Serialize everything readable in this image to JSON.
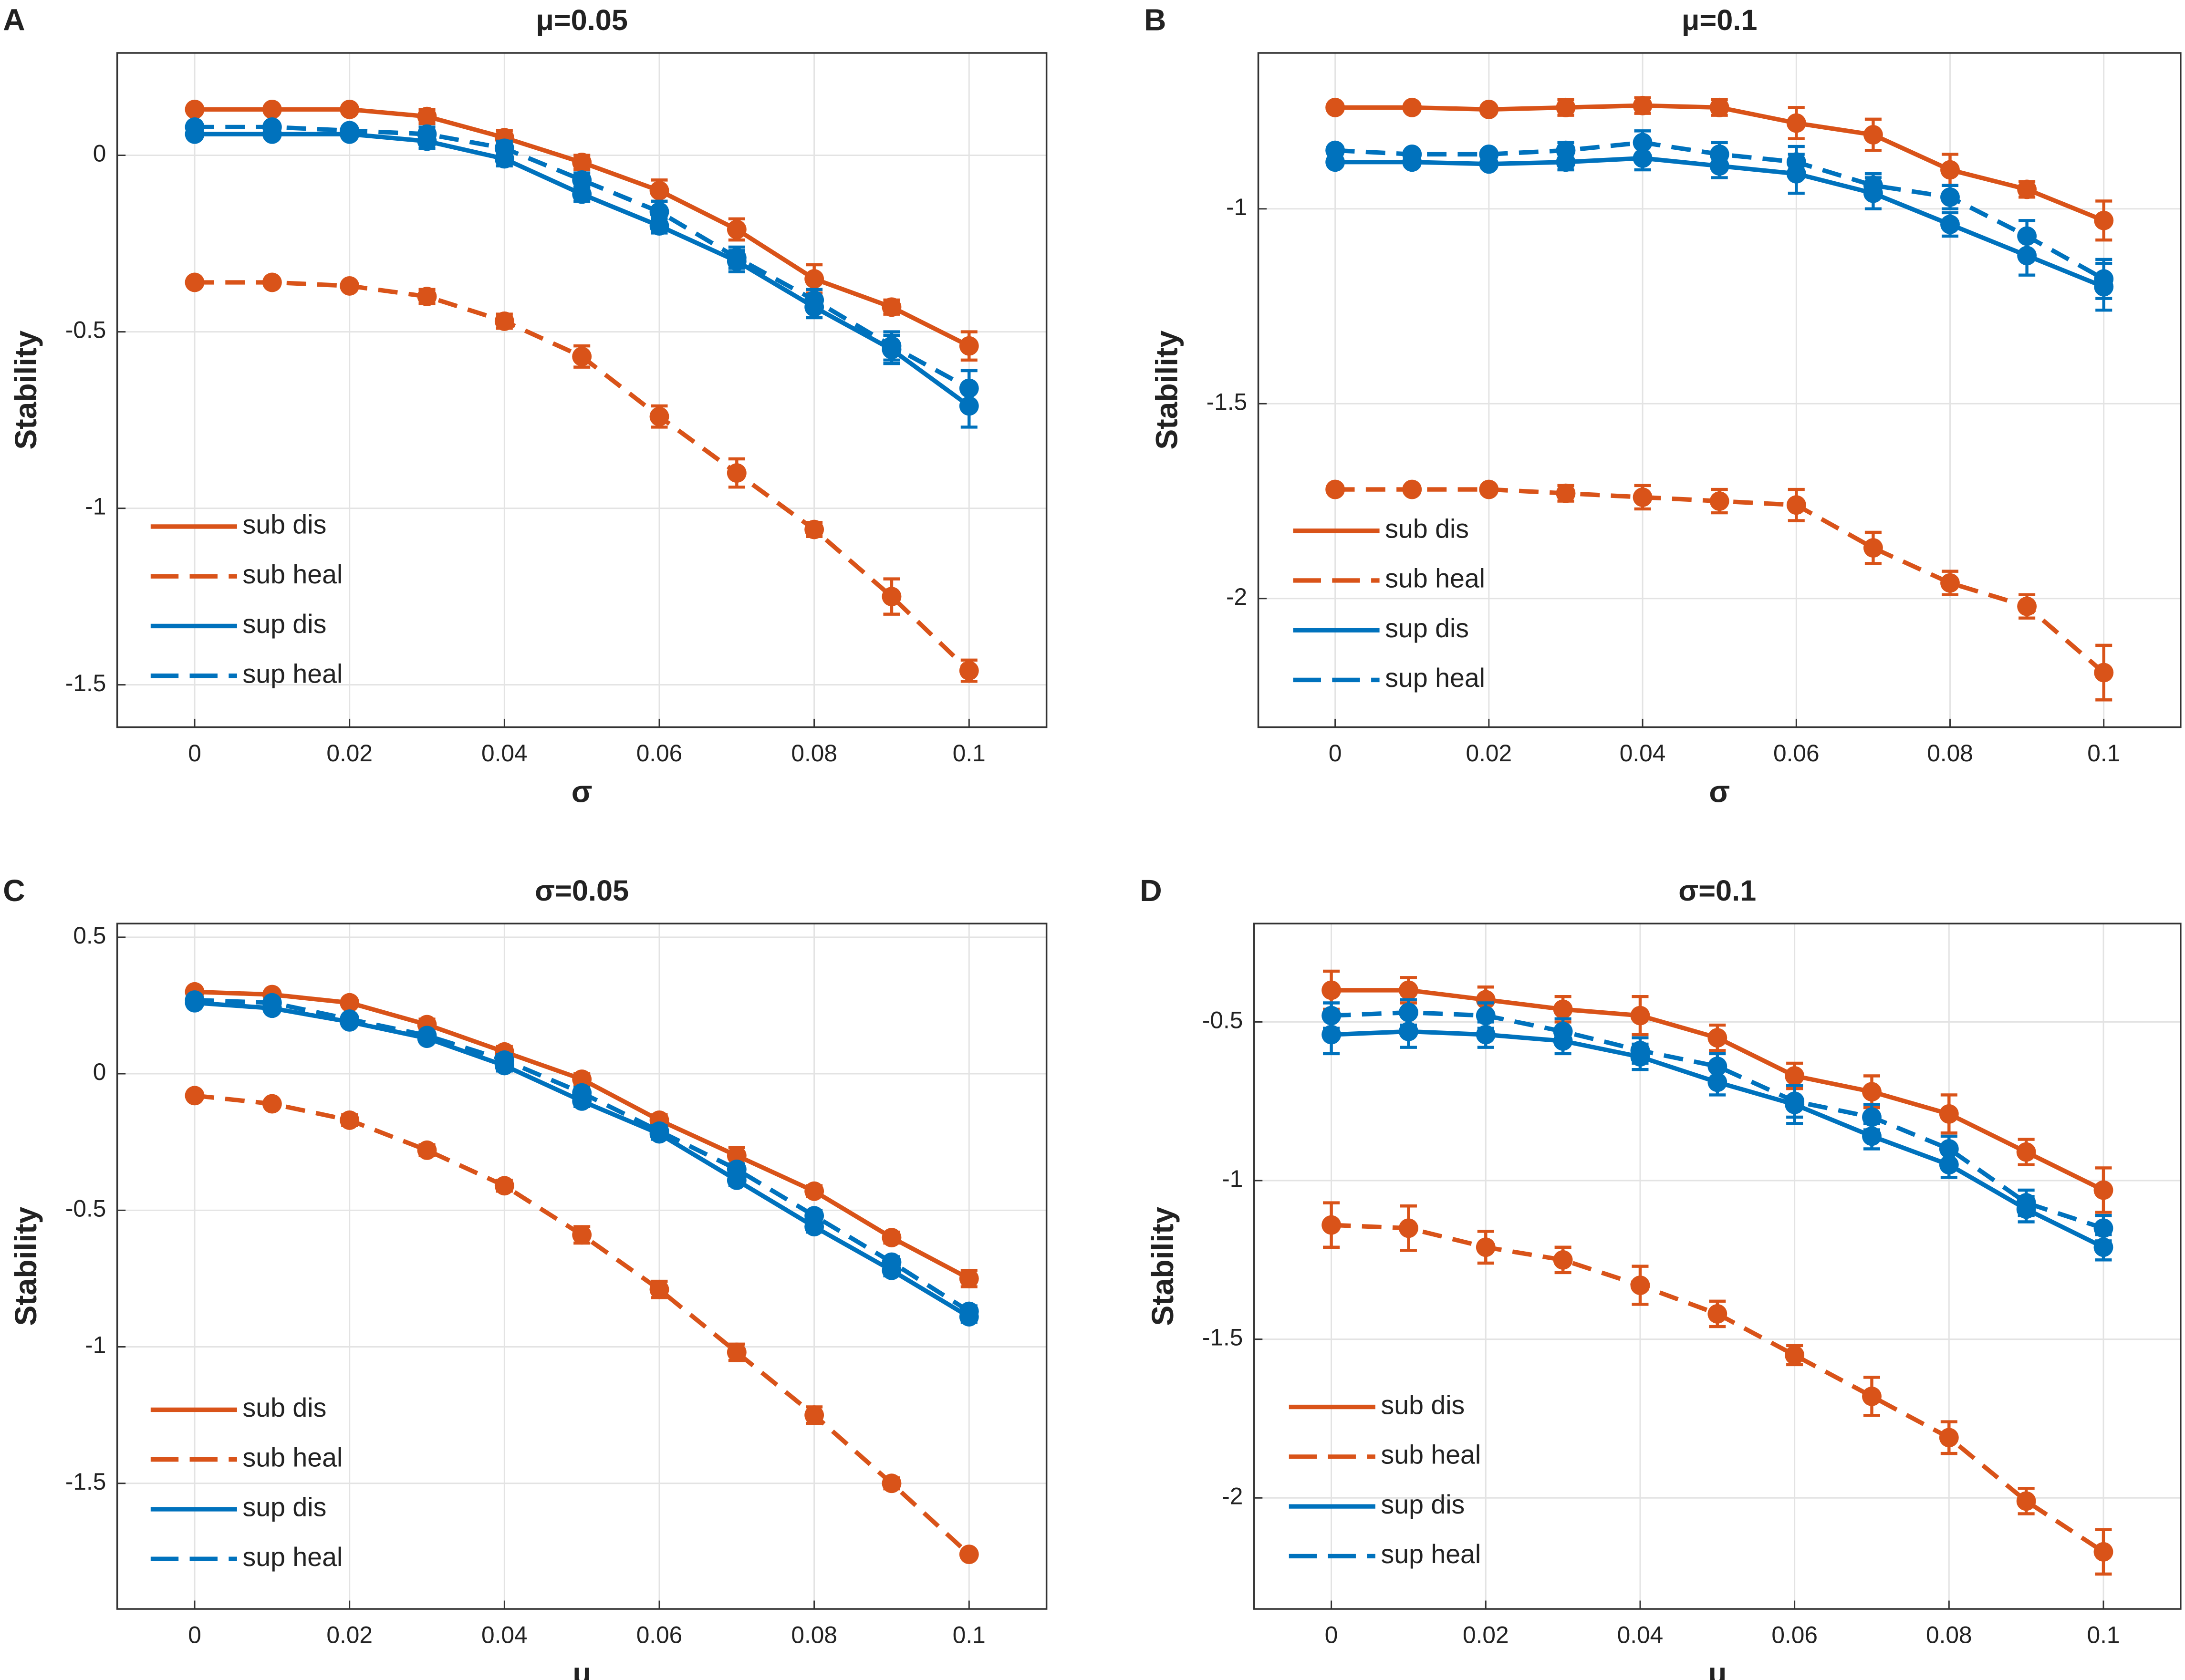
{
  "chart_data": [
    {
      "type": "line",
      "label": "A",
      "title": "μ=0.05",
      "xlabel": "σ",
      "ylabel": "Stability",
      "x": [
        0,
        0.01,
        0.02,
        0.03,
        0.04,
        0.05,
        0.06,
        0.07,
        0.08,
        0.09,
        0.1
      ],
      "xlim": [
        -0.01,
        0.11
      ],
      "ylim": [
        -1.62,
        0.29
      ],
      "xticks": [
        0,
        0.02,
        0.04,
        0.06,
        0.08,
        0.1
      ],
      "yticks": [
        0,
        -0.5,
        -1,
        -1.5
      ],
      "grid": true,
      "legend": "lower left",
      "series": [
        {
          "name": "sub dis",
          "color": "#d95319",
          "linestyle": "solid",
          "values": [
            0.13,
            0.13,
            0.13,
            0.11,
            0.05,
            -0.02,
            -0.1,
            -0.21,
            -0.35,
            -0.43,
            -0.54
          ],
          "errors": [
            0.01,
            0.01,
            0.01,
            0.02,
            0.02,
            0.02,
            0.03,
            0.03,
            0.04,
            0.02,
            0.04
          ]
        },
        {
          "name": "sub heal",
          "color": "#d95319",
          "linestyle": "dashed",
          "values": [
            -0.36,
            -0.36,
            -0.37,
            -0.4,
            -0.47,
            -0.57,
            -0.74,
            -0.9,
            -1.06,
            -1.25,
            -1.46
          ],
          "errors": [
            0.01,
            0.01,
            0.01,
            0.02,
            0.02,
            0.03,
            0.03,
            0.04,
            0.02,
            0.05,
            0.03
          ]
        },
        {
          "name": "sup dis",
          "color": "#0072bd",
          "linestyle": "solid",
          "values": [
            0.06,
            0.06,
            0.06,
            0.04,
            -0.01,
            -0.11,
            -0.2,
            -0.3,
            -0.43,
            -0.55,
            -0.71
          ],
          "errors": [
            0.01,
            0.01,
            0.01,
            0.02,
            0.02,
            0.02,
            0.02,
            0.03,
            0.03,
            0.04,
            0.06
          ]
        },
        {
          "name": "sup heal",
          "color": "#0072bd",
          "linestyle": "dashed",
          "values": [
            0.08,
            0.08,
            0.07,
            0.06,
            0.02,
            -0.07,
            -0.16,
            -0.29,
            -0.41,
            -0.54,
            -0.66
          ],
          "errors": [
            0.01,
            0.01,
            0.01,
            0.02,
            0.02,
            0.02,
            0.03,
            0.03,
            0.03,
            0.04,
            0.05
          ]
        }
      ]
    },
    {
      "type": "line",
      "label": "B",
      "title": "μ=0.1",
      "xlabel": "σ",
      "ylabel": "Stability",
      "x": [
        0,
        0.01,
        0.02,
        0.03,
        0.04,
        0.05,
        0.06,
        0.07,
        0.08,
        0.09,
        0.1
      ],
      "xlim": [
        -0.01,
        0.11
      ],
      "ylim": [
        -2.33,
        -0.6
      ],
      "xticks": [
        0,
        0.02,
        0.04,
        0.06,
        0.08,
        0.1
      ],
      "yticks": [
        -1,
        -1.5,
        -2
      ],
      "grid": true,
      "legend": "lower left",
      "series": [
        {
          "name": "sub dis",
          "color": "#d95319",
          "linestyle": "solid",
          "values": [
            -0.74,
            -0.74,
            -0.745,
            -0.74,
            -0.735,
            -0.74,
            -0.78,
            -0.81,
            -0.9,
            -0.95,
            -1.03
          ],
          "errors": [
            0.01,
            0.01,
            0.01,
            0.02,
            0.02,
            0.02,
            0.04,
            0.04,
            0.04,
            0.02,
            0.05
          ]
        },
        {
          "name": "sub heal",
          "color": "#d95319",
          "linestyle": "dashed",
          "values": [
            -1.72,
            -1.72,
            -1.72,
            -1.73,
            -1.74,
            -1.75,
            -1.76,
            -1.87,
            -1.96,
            -2.02,
            -2.19
          ],
          "errors": [
            0.01,
            0.01,
            0.01,
            0.02,
            0.03,
            0.03,
            0.04,
            0.04,
            0.03,
            0.03,
            0.07
          ]
        },
        {
          "name": "sup dis",
          "color": "#0072bd",
          "linestyle": "solid",
          "values": [
            -0.88,
            -0.88,
            -0.885,
            -0.88,
            -0.87,
            -0.89,
            -0.91,
            -0.96,
            -1.04,
            -1.12,
            -1.2
          ],
          "errors": [
            0.01,
            0.01,
            0.01,
            0.02,
            0.03,
            0.03,
            0.05,
            0.04,
            0.03,
            0.05,
            0.06
          ]
        },
        {
          "name": "sup heal",
          "color": "#0072bd",
          "linestyle": "dashed",
          "values": [
            -0.85,
            -0.86,
            -0.86,
            -0.85,
            -0.83,
            -0.86,
            -0.88,
            -0.94,
            -0.97,
            -1.07,
            -1.18
          ],
          "errors": [
            0.01,
            0.01,
            0.01,
            0.02,
            0.03,
            0.03,
            0.04,
            0.03,
            0.03,
            0.04,
            0.05
          ]
        }
      ]
    },
    {
      "type": "line",
      "label": "C",
      "title": "σ=0.05",
      "xlabel": "μ",
      "ylabel": "Stability",
      "x": [
        0,
        0.01,
        0.02,
        0.03,
        0.04,
        0.05,
        0.06,
        0.07,
        0.08,
        0.09,
        0.1
      ],
      "xlim": [
        -0.01,
        0.11
      ],
      "ylim": [
        -1.96,
        0.55
      ],
      "xticks": [
        0,
        0.02,
        0.04,
        0.06,
        0.08,
        0.1
      ],
      "yticks": [
        0.5,
        0,
        -0.5,
        -1,
        -1.5
      ],
      "grid": true,
      "legend": "lower left",
      "series": [
        {
          "name": "sub dis",
          "color": "#d95319",
          "linestyle": "solid",
          "values": [
            0.3,
            0.29,
            0.26,
            0.18,
            0.08,
            -0.02,
            -0.17,
            -0.3,
            -0.43,
            -0.6,
            -0.75
          ],
          "errors": [
            0.01,
            0.01,
            0.01,
            0.02,
            0.02,
            0.02,
            0.02,
            0.03,
            0.02,
            0.02,
            0.03
          ]
        },
        {
          "name": "sub heal",
          "color": "#d95319",
          "linestyle": "dashed",
          "values": [
            -0.08,
            -0.11,
            -0.17,
            -0.28,
            -0.41,
            -0.59,
            -0.79,
            -1.02,
            -1.25,
            -1.5,
            -1.76
          ],
          "errors": [
            0.01,
            0.01,
            0.02,
            0.02,
            0.02,
            0.03,
            0.03,
            0.03,
            0.03,
            0.02,
            0.01
          ]
        },
        {
          "name": "sup dis",
          "color": "#0072bd",
          "linestyle": "solid",
          "values": [
            0.26,
            0.24,
            0.19,
            0.13,
            0.03,
            -0.1,
            -0.22,
            -0.39,
            -0.56,
            -0.72,
            -0.89
          ],
          "errors": [
            0.01,
            0.01,
            0.01,
            0.01,
            0.02,
            0.02,
            0.02,
            0.02,
            0.02,
            0.02,
            0.02
          ]
        },
        {
          "name": "sup heal",
          "color": "#0072bd",
          "linestyle": "dashed",
          "values": [
            0.27,
            0.26,
            0.2,
            0.14,
            0.05,
            -0.07,
            -0.21,
            -0.35,
            -0.52,
            -0.69,
            -0.87
          ],
          "errors": [
            0.01,
            0.01,
            0.01,
            0.01,
            0.02,
            0.02,
            0.02,
            0.02,
            0.02,
            0.02,
            0.02
          ]
        }
      ]
    },
    {
      "type": "line",
      "label": "D",
      "title": "σ=0.1",
      "xlabel": "μ",
      "ylabel": "Stability",
      "x": [
        0,
        0.01,
        0.02,
        0.03,
        0.04,
        0.05,
        0.06,
        0.07,
        0.08,
        0.09,
        0.1
      ],
      "xlim": [
        -0.01,
        0.11
      ],
      "ylim": [
        -2.35,
        -0.19
      ],
      "xticks": [
        0,
        0.02,
        0.04,
        0.06,
        0.08,
        0.1
      ],
      "yticks": [
        -0.5,
        -1,
        -1.5,
        -2
      ],
      "grid": true,
      "legend": "lower left",
      "series": [
        {
          "name": "sub dis",
          "color": "#d95319",
          "linestyle": "solid",
          "values": [
            -0.4,
            -0.4,
            -0.43,
            -0.46,
            -0.48,
            -0.55,
            -0.67,
            -0.72,
            -0.79,
            -0.91,
            -1.03
          ],
          "errors": [
            0.06,
            0.04,
            0.04,
            0.04,
            0.06,
            0.04,
            0.04,
            0.05,
            0.06,
            0.04,
            0.07
          ]
        },
        {
          "name": "sub heal",
          "color": "#d95319",
          "linestyle": "dashed",
          "values": [
            -1.14,
            -1.15,
            -1.21,
            -1.25,
            -1.33,
            -1.42,
            -1.55,
            -1.68,
            -1.81,
            -2.01,
            -2.17
          ],
          "errors": [
            0.07,
            0.07,
            0.05,
            0.04,
            0.06,
            0.04,
            0.03,
            0.06,
            0.05,
            0.04,
            0.07
          ]
        },
        {
          "name": "sup dis",
          "color": "#0072bd",
          "linestyle": "solid",
          "values": [
            -0.54,
            -0.53,
            -0.54,
            -0.56,
            -0.61,
            -0.69,
            -0.76,
            -0.86,
            -0.95,
            -1.09,
            -1.21
          ],
          "errors": [
            0.06,
            0.05,
            0.04,
            0.04,
            0.04,
            0.04,
            0.06,
            0.04,
            0.04,
            0.04,
            0.04
          ]
        },
        {
          "name": "sup heal",
          "color": "#0072bd",
          "linestyle": "dashed",
          "values": [
            -0.48,
            -0.47,
            -0.48,
            -0.53,
            -0.59,
            -0.64,
            -0.75,
            -0.8,
            -0.9,
            -1.07,
            -1.15
          ],
          "errors": [
            0.04,
            0.04,
            0.04,
            0.04,
            0.04,
            0.04,
            0.05,
            0.04,
            0.04,
            0.04,
            0.04
          ]
        }
      ]
    }
  ]
}
